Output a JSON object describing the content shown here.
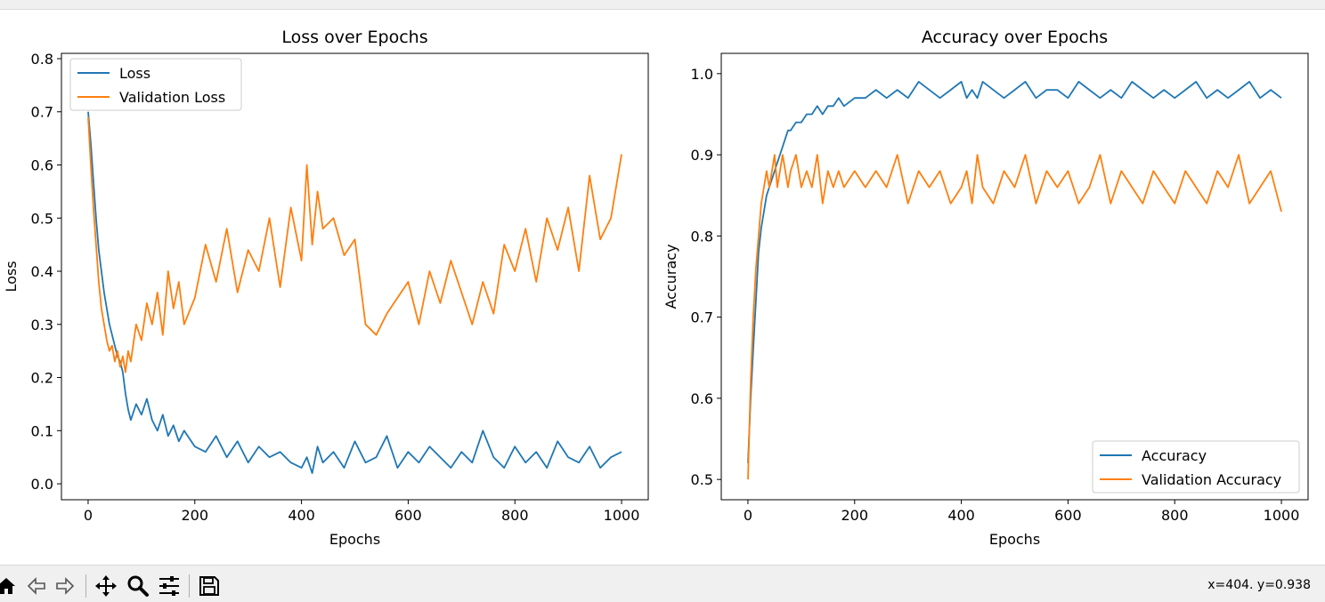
{
  "toolbar": {
    "buttons": [
      {
        "name": "home-button",
        "icon": "home-icon"
      },
      {
        "name": "back-button",
        "icon": "back-arrow-icon"
      },
      {
        "name": "forward-button",
        "icon": "forward-arrow-icon"
      },
      {
        "name": "pan-button",
        "icon": "move-icon"
      },
      {
        "name": "zoom-button",
        "icon": "magnifier-icon"
      },
      {
        "name": "configure-subplots-button",
        "icon": "sliders-icon"
      },
      {
        "name": "save-button",
        "icon": "floppy-disk-icon"
      }
    ],
    "coords": "x=404. y=0.938"
  },
  "colors": {
    "series1": "#1f77b4",
    "series2": "#ff7f0e"
  },
  "chart_data": [
    {
      "type": "line",
      "title": "Loss over Epochs",
      "xlabel": "Epochs",
      "ylabel": "Loss",
      "xlim": [
        -50,
        1050
      ],
      "ylim": [
        -0.03,
        0.81
      ],
      "xticks": [
        0,
        200,
        400,
        600,
        800,
        1000
      ],
      "xtick_labels": [
        "0",
        "200",
        "400",
        "600",
        "800",
        "1000"
      ],
      "yticks": [
        0.0,
        0.1,
        0.2,
        0.3,
        0.4,
        0.5,
        0.6,
        0.7,
        0.8
      ],
      "ytick_labels": [
        "0.0",
        "0.1",
        "0.2",
        "0.3",
        "0.4",
        "0.5",
        "0.6",
        "0.7",
        "0.8"
      ],
      "legend": "upper-left",
      "grid": false,
      "series": [
        {
          "name": "Loss",
          "color": "#1f77b4",
          "x": [
            0,
            5,
            10,
            15,
            20,
            25,
            30,
            35,
            40,
            45,
            50,
            55,
            60,
            65,
            70,
            75,
            80,
            90,
            100,
            110,
            120,
            130,
            140,
            150,
            160,
            170,
            180,
            200,
            220,
            240,
            260,
            280,
            300,
            320,
            340,
            360,
            380,
            400,
            410,
            420,
            430,
            440,
            460,
            480,
            500,
            520,
            540,
            560,
            580,
            600,
            620,
            640,
            660,
            680,
            700,
            720,
            740,
            760,
            780,
            800,
            820,
            840,
            860,
            880,
            900,
            920,
            940,
            960,
            980,
            1000
          ],
          "y": [
            0.7,
            0.64,
            0.57,
            0.5,
            0.44,
            0.4,
            0.36,
            0.33,
            0.3,
            0.28,
            0.26,
            0.24,
            0.23,
            0.21,
            0.17,
            0.14,
            0.12,
            0.15,
            0.13,
            0.16,
            0.12,
            0.1,
            0.13,
            0.09,
            0.11,
            0.08,
            0.1,
            0.07,
            0.06,
            0.09,
            0.05,
            0.08,
            0.04,
            0.07,
            0.05,
            0.06,
            0.04,
            0.03,
            0.05,
            0.02,
            0.07,
            0.04,
            0.06,
            0.03,
            0.08,
            0.04,
            0.05,
            0.09,
            0.03,
            0.06,
            0.04,
            0.07,
            0.05,
            0.03,
            0.06,
            0.04,
            0.1,
            0.05,
            0.03,
            0.07,
            0.04,
            0.06,
            0.03,
            0.08,
            0.05,
            0.04,
            0.07,
            0.03,
            0.05,
            0.06
          ]
        },
        {
          "name": "Validation Loss",
          "color": "#ff7f0e",
          "x": [
            0,
            5,
            10,
            15,
            20,
            25,
            30,
            35,
            40,
            45,
            50,
            55,
            60,
            65,
            70,
            75,
            80,
            90,
            100,
            110,
            120,
            130,
            140,
            150,
            160,
            170,
            180,
            200,
            220,
            240,
            260,
            280,
            300,
            320,
            340,
            360,
            380,
            400,
            410,
            420,
            430,
            440,
            460,
            480,
            500,
            520,
            540,
            560,
            580,
            600,
            620,
            640,
            660,
            680,
            700,
            720,
            740,
            760,
            780,
            800,
            820,
            840,
            860,
            880,
            900,
            920,
            940,
            960,
            980,
            1000
          ],
          "y": [
            0.69,
            0.6,
            0.52,
            0.45,
            0.38,
            0.33,
            0.3,
            0.27,
            0.25,
            0.26,
            0.23,
            0.25,
            0.22,
            0.24,
            0.21,
            0.25,
            0.23,
            0.3,
            0.27,
            0.34,
            0.3,
            0.36,
            0.28,
            0.4,
            0.33,
            0.38,
            0.3,
            0.35,
            0.45,
            0.38,
            0.48,
            0.36,
            0.44,
            0.4,
            0.5,
            0.37,
            0.52,
            0.42,
            0.6,
            0.45,
            0.55,
            0.48,
            0.5,
            0.43,
            0.46,
            0.3,
            0.28,
            0.32,
            0.35,
            0.38,
            0.3,
            0.4,
            0.34,
            0.42,
            0.36,
            0.3,
            0.38,
            0.32,
            0.45,
            0.4,
            0.48,
            0.38,
            0.5,
            0.44,
            0.52,
            0.4,
            0.58,
            0.46,
            0.5,
            0.62
          ]
        }
      ]
    },
    {
      "type": "line",
      "title": "Accuracy over Epochs",
      "xlabel": "Epochs",
      "ylabel": "Accuracy",
      "xlim": [
        -50,
        1050
      ],
      "ylim": [
        0.475,
        1.025
      ],
      "xticks": [
        0,
        200,
        400,
        600,
        800,
        1000
      ],
      "xtick_labels": [
        "0",
        "200",
        "400",
        "600",
        "800",
        "1000"
      ],
      "yticks": [
        0.5,
        0.6,
        0.7,
        0.8,
        0.9,
        1.0
      ],
      "ytick_labels": [
        "0.5",
        "0.6",
        "0.7",
        "0.8",
        "0.9",
        "1.0"
      ],
      "legend": "lower-right",
      "grid": false,
      "series": [
        {
          "name": "Accuracy",
          "color": "#1f77b4",
          "x": [
            0,
            5,
            10,
            15,
            20,
            25,
            30,
            35,
            40,
            45,
            50,
            55,
            60,
            65,
            70,
            75,
            80,
            90,
            100,
            110,
            120,
            130,
            140,
            150,
            160,
            170,
            180,
            200,
            220,
            240,
            260,
            280,
            300,
            320,
            340,
            360,
            380,
            400,
            410,
            420,
            430,
            440,
            460,
            480,
            500,
            520,
            540,
            560,
            580,
            600,
            620,
            640,
            660,
            680,
            700,
            720,
            740,
            760,
            780,
            800,
            820,
            840,
            860,
            880,
            900,
            920,
            940,
            960,
            980,
            1000
          ],
          "y": [
            0.52,
            0.6,
            0.66,
            0.72,
            0.78,
            0.81,
            0.83,
            0.85,
            0.86,
            0.87,
            0.88,
            0.89,
            0.9,
            0.91,
            0.92,
            0.93,
            0.93,
            0.94,
            0.94,
            0.95,
            0.95,
            0.96,
            0.95,
            0.96,
            0.96,
            0.97,
            0.96,
            0.97,
            0.97,
            0.98,
            0.97,
            0.98,
            0.97,
            0.99,
            0.98,
            0.97,
            0.98,
            0.99,
            0.97,
            0.98,
            0.97,
            0.99,
            0.98,
            0.97,
            0.98,
            0.99,
            0.97,
            0.98,
            0.98,
            0.97,
            0.99,
            0.98,
            0.97,
            0.98,
            0.97,
            0.99,
            0.98,
            0.97,
            0.98,
            0.97,
            0.98,
            0.99,
            0.97,
            0.98,
            0.97,
            0.98,
            0.99,
            0.97,
            0.98,
            0.97
          ]
        },
        {
          "name": "Validation Accuracy",
          "color": "#ff7f0e",
          "x": [
            0,
            5,
            10,
            15,
            20,
            25,
            30,
            35,
            40,
            45,
            50,
            55,
            60,
            65,
            70,
            75,
            80,
            90,
            100,
            110,
            120,
            130,
            140,
            150,
            160,
            170,
            180,
            200,
            220,
            240,
            260,
            280,
            300,
            320,
            340,
            360,
            380,
            400,
            410,
            420,
            430,
            440,
            460,
            480,
            500,
            520,
            540,
            560,
            580,
            600,
            620,
            640,
            660,
            680,
            700,
            720,
            740,
            760,
            780,
            800,
            820,
            840,
            860,
            880,
            900,
            920,
            940,
            960,
            980,
            1000
          ],
          "y": [
            0.5,
            0.62,
            0.7,
            0.76,
            0.8,
            0.84,
            0.86,
            0.88,
            0.86,
            0.88,
            0.9,
            0.86,
            0.88,
            0.9,
            0.88,
            0.86,
            0.88,
            0.9,
            0.86,
            0.88,
            0.86,
            0.9,
            0.84,
            0.88,
            0.86,
            0.88,
            0.86,
            0.88,
            0.86,
            0.88,
            0.86,
            0.9,
            0.84,
            0.88,
            0.86,
            0.88,
            0.84,
            0.86,
            0.88,
            0.84,
            0.9,
            0.86,
            0.84,
            0.88,
            0.86,
            0.9,
            0.84,
            0.88,
            0.86,
            0.88,
            0.84,
            0.86,
            0.9,
            0.84,
            0.88,
            0.86,
            0.84,
            0.88,
            0.86,
            0.84,
            0.88,
            0.86,
            0.84,
            0.88,
            0.86,
            0.9,
            0.84,
            0.86,
            0.88,
            0.83
          ]
        }
      ]
    }
  ]
}
